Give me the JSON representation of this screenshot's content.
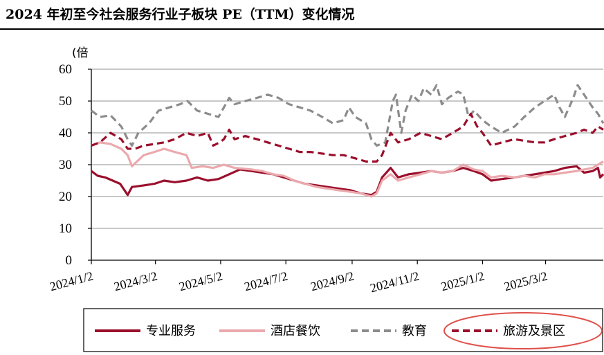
{
  "title": "2024 年初至今社会服务行业子板块 PE（TTM）变化情况",
  "chart_data": {
    "type": "line",
    "ylabel": "(倍",
    "ylim": [
      0,
      60
    ],
    "yticks": [
      0,
      10,
      20,
      30,
      40,
      50,
      60
    ],
    "grid": true,
    "legend_position": "bottom",
    "xlim": [
      "2024-01-02",
      "2025-04-25"
    ],
    "xticks": [
      {
        "label": "2024/1/2",
        "date": "2024-01-02"
      },
      {
        "label": "2024/3/2",
        "date": "2024-03-02"
      },
      {
        "label": "2024/5/2",
        "date": "2024-05-02"
      },
      {
        "label": "2024/7/2",
        "date": "2024-07-02"
      },
      {
        "label": "2024/9/2",
        "date": "2024-09-02"
      },
      {
        "label": "2024/11/2",
        "date": "2024-11-02"
      },
      {
        "label": "2025/1/2",
        "date": "2025-01-02"
      },
      {
        "label": "2025/3/2",
        "date": "2025-03-02"
      }
    ],
    "series": [
      {
        "name": "专业服务",
        "color": "#9b0f2c",
        "style": "solid",
        "points": [
          [
            "2024-01-02",
            28
          ],
          [
            "2024-01-08",
            26.5
          ],
          [
            "2024-01-15",
            26
          ],
          [
            "2024-01-22",
            25
          ],
          [
            "2024-01-29",
            24
          ],
          [
            "2024-02-02",
            22
          ],
          [
            "2024-02-05",
            20.5
          ],
          [
            "2024-02-09",
            23
          ],
          [
            "2024-02-20",
            23.5
          ],
          [
            "2024-03-01",
            24
          ],
          [
            "2024-03-10",
            25
          ],
          [
            "2024-03-20",
            24.5
          ],
          [
            "2024-03-31",
            25
          ],
          [
            "2024-04-10",
            26
          ],
          [
            "2024-04-20",
            25
          ],
          [
            "2024-04-30",
            25.5
          ],
          [
            "2024-05-10",
            27
          ],
          [
            "2024-05-20",
            28.5
          ],
          [
            "2024-05-31",
            28
          ],
          [
            "2024-06-10",
            27.5
          ],
          [
            "2024-06-20",
            27
          ],
          [
            "2024-06-30",
            26
          ],
          [
            "2024-07-10",
            25
          ],
          [
            "2024-07-20",
            24
          ],
          [
            "2024-07-31",
            23.5
          ],
          [
            "2024-08-10",
            23
          ],
          [
            "2024-08-20",
            22.5
          ],
          [
            "2024-08-31",
            22
          ],
          [
            "2024-09-10",
            21
          ],
          [
            "2024-09-20",
            20.5
          ],
          [
            "2024-09-25",
            21.5
          ],
          [
            "2024-09-30",
            26
          ],
          [
            "2024-10-08",
            29
          ],
          [
            "2024-10-15",
            26
          ],
          [
            "2024-10-25",
            27
          ],
          [
            "2024-11-05",
            27.5
          ],
          [
            "2024-11-15",
            28
          ],
          [
            "2024-11-25",
            27.5
          ],
          [
            "2024-12-05",
            28
          ],
          [
            "2024-12-15",
            29
          ],
          [
            "2024-12-25",
            28
          ],
          [
            "2025-01-02",
            27
          ],
          [
            "2025-01-10",
            25
          ],
          [
            "2025-01-20",
            25.5
          ],
          [
            "2025-02-01",
            26
          ],
          [
            "2025-02-10",
            26.5
          ],
          [
            "2025-02-20",
            27
          ],
          [
            "2025-03-01",
            27.5
          ],
          [
            "2025-03-10",
            28
          ],
          [
            "2025-03-20",
            29
          ],
          [
            "2025-03-31",
            29.5
          ],
          [
            "2025-04-07",
            27.5
          ],
          [
            "2025-04-15",
            28
          ],
          [
            "2025-04-20",
            29
          ],
          [
            "2025-04-22",
            26
          ],
          [
            "2025-04-25",
            27
          ]
        ]
      },
      {
        "name": "酒店餐饮",
        "color": "#eba9ad",
        "style": "solid",
        "points": [
          [
            "2024-01-02",
            36
          ],
          [
            "2024-01-10",
            37
          ],
          [
            "2024-01-20",
            36.5
          ],
          [
            "2024-01-30",
            35
          ],
          [
            "2024-02-05",
            33
          ],
          [
            "2024-02-09",
            29.5
          ],
          [
            "2024-02-20",
            33
          ],
          [
            "2024-03-01",
            34
          ],
          [
            "2024-03-10",
            35
          ],
          [
            "2024-03-20",
            34
          ],
          [
            "2024-03-31",
            33
          ],
          [
            "2024-04-05",
            29
          ],
          [
            "2024-04-15",
            29.5
          ],
          [
            "2024-04-25",
            29
          ],
          [
            "2024-05-05",
            30
          ],
          [
            "2024-05-15",
            29
          ],
          [
            "2024-05-31",
            28.5
          ],
          [
            "2024-06-10",
            28
          ],
          [
            "2024-06-20",
            27
          ],
          [
            "2024-06-30",
            26.5
          ],
          [
            "2024-07-10",
            25
          ],
          [
            "2024-07-20",
            24
          ],
          [
            "2024-07-31",
            23
          ],
          [
            "2024-08-10",
            22.5
          ],
          [
            "2024-08-20",
            22
          ],
          [
            "2024-08-31",
            21.5
          ],
          [
            "2024-09-10",
            21
          ],
          [
            "2024-09-20",
            20
          ],
          [
            "2024-09-25",
            21
          ],
          [
            "2024-09-30",
            25
          ],
          [
            "2024-10-08",
            27
          ],
          [
            "2024-10-15",
            25
          ],
          [
            "2024-10-25",
            26
          ],
          [
            "2024-11-05",
            27
          ],
          [
            "2024-11-15",
            28
          ],
          [
            "2024-11-25",
            27.5
          ],
          [
            "2024-12-05",
            28
          ],
          [
            "2024-12-15",
            30
          ],
          [
            "2024-12-25",
            28.5
          ],
          [
            "2025-01-02",
            28
          ],
          [
            "2025-01-10",
            26
          ],
          [
            "2025-01-20",
            26.5
          ],
          [
            "2025-02-01",
            26
          ],
          [
            "2025-02-10",
            26.5
          ],
          [
            "2025-02-20",
            26
          ],
          [
            "2025-03-01",
            27
          ],
          [
            "2025-03-10",
            27
          ],
          [
            "2025-03-20",
            27.5
          ],
          [
            "2025-03-31",
            28
          ],
          [
            "2025-04-07",
            28.5
          ],
          [
            "2025-04-15",
            29
          ],
          [
            "2025-04-20",
            30
          ],
          [
            "2025-04-25",
            31
          ]
        ]
      },
      {
        "name": "教育",
        "color": "#8c8c8c",
        "style": "dashed",
        "points": [
          [
            "2024-01-02",
            47
          ],
          [
            "2024-01-10",
            45
          ],
          [
            "2024-01-20",
            45.5
          ],
          [
            "2024-01-30",
            42
          ],
          [
            "2024-02-05",
            38
          ],
          [
            "2024-02-09",
            36
          ],
          [
            "2024-02-15",
            40
          ],
          [
            "2024-02-25",
            43
          ],
          [
            "2024-03-05",
            47
          ],
          [
            "2024-03-15",
            48
          ],
          [
            "2024-03-25",
            49
          ],
          [
            "2024-04-01",
            50
          ],
          [
            "2024-04-10",
            47
          ],
          [
            "2024-04-20",
            46
          ],
          [
            "2024-04-30",
            45
          ],
          [
            "2024-05-05",
            48
          ],
          [
            "2024-05-10",
            51
          ],
          [
            "2024-05-15",
            49
          ],
          [
            "2024-05-25",
            50
          ],
          [
            "2024-06-05",
            51
          ],
          [
            "2024-06-15",
            52
          ],
          [
            "2024-06-25",
            51
          ],
          [
            "2024-07-05",
            49
          ],
          [
            "2024-07-15",
            48
          ],
          [
            "2024-07-25",
            47
          ],
          [
            "2024-08-05",
            45
          ],
          [
            "2024-08-15",
            43
          ],
          [
            "2024-08-25",
            44
          ],
          [
            "2024-08-30",
            48
          ],
          [
            "2024-09-05",
            45
          ],
          [
            "2024-09-15",
            43
          ],
          [
            "2024-09-20",
            38
          ],
          [
            "2024-09-25",
            36
          ],
          [
            "2024-10-03",
            37
          ],
          [
            "2024-10-10",
            50
          ],
          [
            "2024-10-13",
            52
          ],
          [
            "2024-10-18",
            40
          ],
          [
            "2024-10-22",
            47
          ],
          [
            "2024-10-28",
            52
          ],
          [
            "2024-11-03",
            50
          ],
          [
            "2024-11-08",
            54
          ],
          [
            "2024-11-15",
            52
          ],
          [
            "2024-11-20",
            55
          ],
          [
            "2024-11-25",
            49
          ],
          [
            "2024-12-01",
            51
          ],
          [
            "2024-12-10",
            53
          ],
          [
            "2024-12-15",
            52
          ],
          [
            "2024-12-20",
            45
          ],
          [
            "2024-12-25",
            47
          ],
          [
            "2025-01-02",
            44
          ],
          [
            "2025-01-10",
            42
          ],
          [
            "2025-01-20",
            40
          ],
          [
            "2025-02-01",
            42
          ],
          [
            "2025-02-10",
            45
          ],
          [
            "2025-02-20",
            48
          ],
          [
            "2025-03-01",
            50
          ],
          [
            "2025-03-10",
            52
          ],
          [
            "2025-03-15",
            48
          ],
          [
            "2025-03-20",
            45
          ],
          [
            "2025-03-28",
            51
          ],
          [
            "2025-04-01",
            55
          ],
          [
            "2025-04-07",
            52
          ],
          [
            "2025-04-15",
            48
          ],
          [
            "2025-04-20",
            46
          ],
          [
            "2025-04-25",
            43
          ]
        ]
      },
      {
        "name": "旅游及景区",
        "color": "#9b0f2c",
        "style": "dashed",
        "points": [
          [
            "2024-01-02",
            36
          ],
          [
            "2024-01-10",
            37
          ],
          [
            "2024-01-20",
            40
          ],
          [
            "2024-01-30",
            38
          ],
          [
            "2024-02-05",
            35
          ],
          [
            "2024-02-12",
            35
          ],
          [
            "2024-02-20",
            36
          ],
          [
            "2024-03-01",
            36.5
          ],
          [
            "2024-03-10",
            37
          ],
          [
            "2024-03-20",
            38
          ],
          [
            "2024-03-31",
            40
          ],
          [
            "2024-04-10",
            39
          ],
          [
            "2024-04-20",
            40
          ],
          [
            "2024-04-25",
            36
          ],
          [
            "2024-05-01",
            37
          ],
          [
            "2024-05-05",
            38
          ],
          [
            "2024-05-10",
            41
          ],
          [
            "2024-05-15",
            38
          ],
          [
            "2024-05-25",
            39
          ],
          [
            "2024-06-05",
            38
          ],
          [
            "2024-06-15",
            37
          ],
          [
            "2024-06-25",
            36
          ],
          [
            "2024-07-05",
            35
          ],
          [
            "2024-07-15",
            34
          ],
          [
            "2024-07-25",
            34
          ],
          [
            "2024-08-05",
            33.5
          ],
          [
            "2024-08-15",
            33
          ],
          [
            "2024-08-25",
            33
          ],
          [
            "2024-09-05",
            32
          ],
          [
            "2024-09-15",
            31
          ],
          [
            "2024-09-25",
            31
          ],
          [
            "2024-09-30",
            33
          ],
          [
            "2024-10-08",
            40
          ],
          [
            "2024-10-15",
            37
          ],
          [
            "2024-10-25",
            38
          ],
          [
            "2024-11-05",
            40
          ],
          [
            "2024-11-15",
            39
          ],
          [
            "2024-11-25",
            38
          ],
          [
            "2024-12-05",
            40
          ],
          [
            "2024-12-15",
            42
          ],
          [
            "2024-12-22",
            46
          ],
          [
            "2024-12-28",
            42
          ],
          [
            "2025-01-02",
            40
          ],
          [
            "2025-01-10",
            36
          ],
          [
            "2025-01-20",
            37
          ],
          [
            "2025-02-01",
            38
          ],
          [
            "2025-02-10",
            37.5
          ],
          [
            "2025-02-20",
            37
          ],
          [
            "2025-03-01",
            37
          ],
          [
            "2025-03-10",
            38
          ],
          [
            "2025-03-20",
            39
          ],
          [
            "2025-03-31",
            40
          ],
          [
            "2025-04-07",
            41
          ],
          [
            "2025-04-15",
            40
          ],
          [
            "2025-04-20",
            42
          ],
          [
            "2025-04-25",
            41
          ]
        ]
      }
    ]
  }
}
